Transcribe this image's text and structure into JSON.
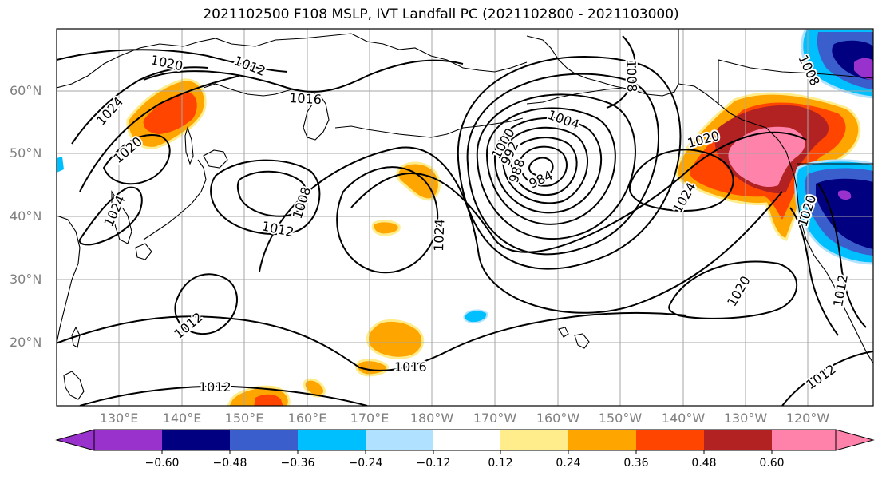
{
  "title": "2021102500 F108 MSLP, IVT Landfall PC (2021102800 - 2021103000)",
  "lat_labels": [
    "60°N",
    "50°N",
    "40°N",
    "30°N",
    "20°N"
  ],
  "lon_labels": [
    "130°E",
    "140°E",
    "150°E",
    "160°E",
    "170°E",
    "180°W",
    "170°W",
    "160°W",
    "150°W",
    "140°W",
    "130°W",
    "120°W"
  ],
  "contour_labels": [
    "1020",
    "1012",
    "1016",
    "1024",
    "1020",
    "1024",
    "1008",
    "1012",
    "1024",
    "1004",
    "1000",
    "992",
    "988",
    "984",
    "1008",
    "1020",
    "1024",
    "1020",
    "1012",
    "1016",
    "1012",
    "1012",
    "1020",
    "1012",
    "1008"
  ],
  "colorbar": {
    "colors": [
      "#9932cc",
      "#000080",
      "#3a5fcd",
      "#00bfff",
      "#b0e2ff",
      "#ffffff",
      "#ffec8b",
      "#ffa500",
      "#ff4500",
      "#b22222",
      "#ff82ab"
    ],
    "tick_labels": [
      "−0.60",
      "−0.48",
      "−0.36",
      "−0.24",
      "−0.12",
      "0.12",
      "0.24",
      "0.36",
      "0.48",
      "0.60"
    ]
  }
}
